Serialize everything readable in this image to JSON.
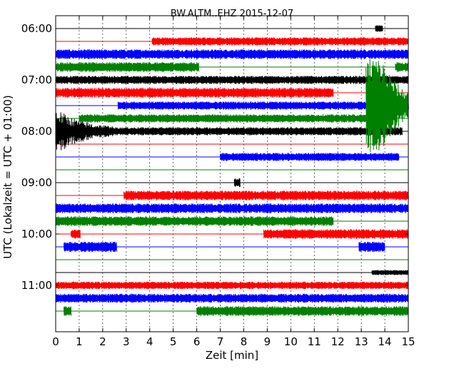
{
  "chart_data": {
    "type": "line",
    "title": "BW.ALTM..EHZ 2015-12-07",
    "xlabel": "Zeit  [min]",
    "ylabel": "UTC (Lokalzeit = UTC + 01:00)",
    "xlim": [
      0,
      15
    ],
    "x_ticks": [
      "0",
      "1",
      "2",
      "3",
      "4",
      "5",
      "6",
      "7",
      "8",
      "9",
      "10",
      "11",
      "12",
      "13",
      "14",
      "15"
    ],
    "y_ticks": [
      "06:00",
      "07:00",
      "08:00",
      "09:00",
      "10:00",
      "11:00"
    ],
    "row_interval_min": 15,
    "first_row": "06:00",
    "grid": true,
    "colors": [
      "#000000",
      "#ff0000",
      "#0000ff",
      "#008000"
    ],
    "series": [
      {
        "row": 0,
        "color": "#000000",
        "segments": [
          [
            13.6,
            13.9
          ]
        ],
        "amplitude": 0.45
      },
      {
        "row": 1,
        "color": "#ff0000",
        "segments": [
          [
            4.1,
            15
          ]
        ],
        "amplitude": 0.55
      },
      {
        "row": 2,
        "color": "#0000ff",
        "segments": [
          [
            0,
            15
          ]
        ],
        "amplitude": 0.65
      },
      {
        "row": 3,
        "color": "#008000",
        "segments": [
          [
            0,
            6.1
          ],
          [
            14.45,
            15
          ]
        ],
        "amplitude": 0.65
      },
      {
        "row": 4,
        "color": "#000000",
        "segments": [
          [
            0,
            15
          ]
        ],
        "amplitude": 0.55
      },
      {
        "row": 5,
        "color": "#ff0000",
        "segments": [
          [
            0,
            11.8
          ]
        ],
        "amplitude": 0.65
      },
      {
        "row": 6,
        "color": "#0000ff",
        "segments": [
          [
            2.65,
            15
          ]
        ],
        "amplitude": 0.55
      },
      {
        "row": 7,
        "color": "#008000",
        "segments": [
          [
            1.0,
            13.2
          ]
        ],
        "amplitude": 0.55
      },
      {
        "row": 8,
        "color": "#000000",
        "segments": [
          [
            0,
            14.75
          ]
        ],
        "amplitude": 0.55
      },
      {
        "row": 9,
        "color": "#ff0000",
        "segments": [],
        "amplitude": 0.5
      },
      {
        "row": 10,
        "color": "#0000ff",
        "segments": [
          [
            7.0,
            14.6
          ]
        ],
        "amplitude": 0.55
      },
      {
        "row": 11,
        "color": "#008000",
        "segments": [],
        "amplitude": 0.5
      },
      {
        "row": 12,
        "color": "#000000",
        "segments": [
          [
            7.6,
            7.85
          ]
        ],
        "amplitude": 0.6
      },
      {
        "row": 13,
        "color": "#ff0000",
        "segments": [
          [
            2.9,
            15
          ]
        ],
        "amplitude": 0.65
      },
      {
        "row": 14,
        "color": "#0000ff",
        "segments": [
          [
            0,
            15
          ]
        ],
        "amplitude": 0.65
      },
      {
        "row": 15,
        "color": "#008000",
        "segments": [
          [
            0,
            11.8
          ]
        ],
        "amplitude": 0.65
      },
      {
        "row": 16,
        "color": "#ff0000",
        "segments": [
          [
            0.65,
            1.05
          ],
          [
            8.85,
            15
          ]
        ],
        "amplitude": 0.65
      },
      {
        "row": 17,
        "color": "#0000ff",
        "segments": [
          [
            0.35,
            2.6
          ],
          [
            12.9,
            14.0
          ]
        ],
        "amplitude": 0.7
      },
      {
        "row": 18,
        "color": "#008000",
        "segments": [],
        "amplitude": 0.5
      },
      {
        "row": 19,
        "color": "#000000",
        "segments": [
          [
            13.45,
            15
          ]
        ],
        "amplitude": 0.35
      },
      {
        "row": 20,
        "color": "#ff0000",
        "segments": [
          [
            0,
            15
          ]
        ],
        "amplitude": 0.5
      },
      {
        "row": 21,
        "color": "#0000ff",
        "segments": [
          [
            0,
            15
          ]
        ],
        "amplitude": 0.6
      },
      {
        "row": 22,
        "color": "#008000",
        "segments": [
          [
            0.35,
            0.65
          ],
          [
            6.0,
            15
          ]
        ],
        "amplitude": 0.65
      }
    ],
    "events": [
      {
        "name": "earthquake-coda",
        "color": "#008000",
        "row_start": 2,
        "row_end": 10,
        "x_start": 13.2,
        "x_end": 15.0
      },
      {
        "name": "local-event",
        "color": "#000000",
        "row": 8,
        "x_start": 0.0,
        "x_end": 2.5
      }
    ]
  }
}
